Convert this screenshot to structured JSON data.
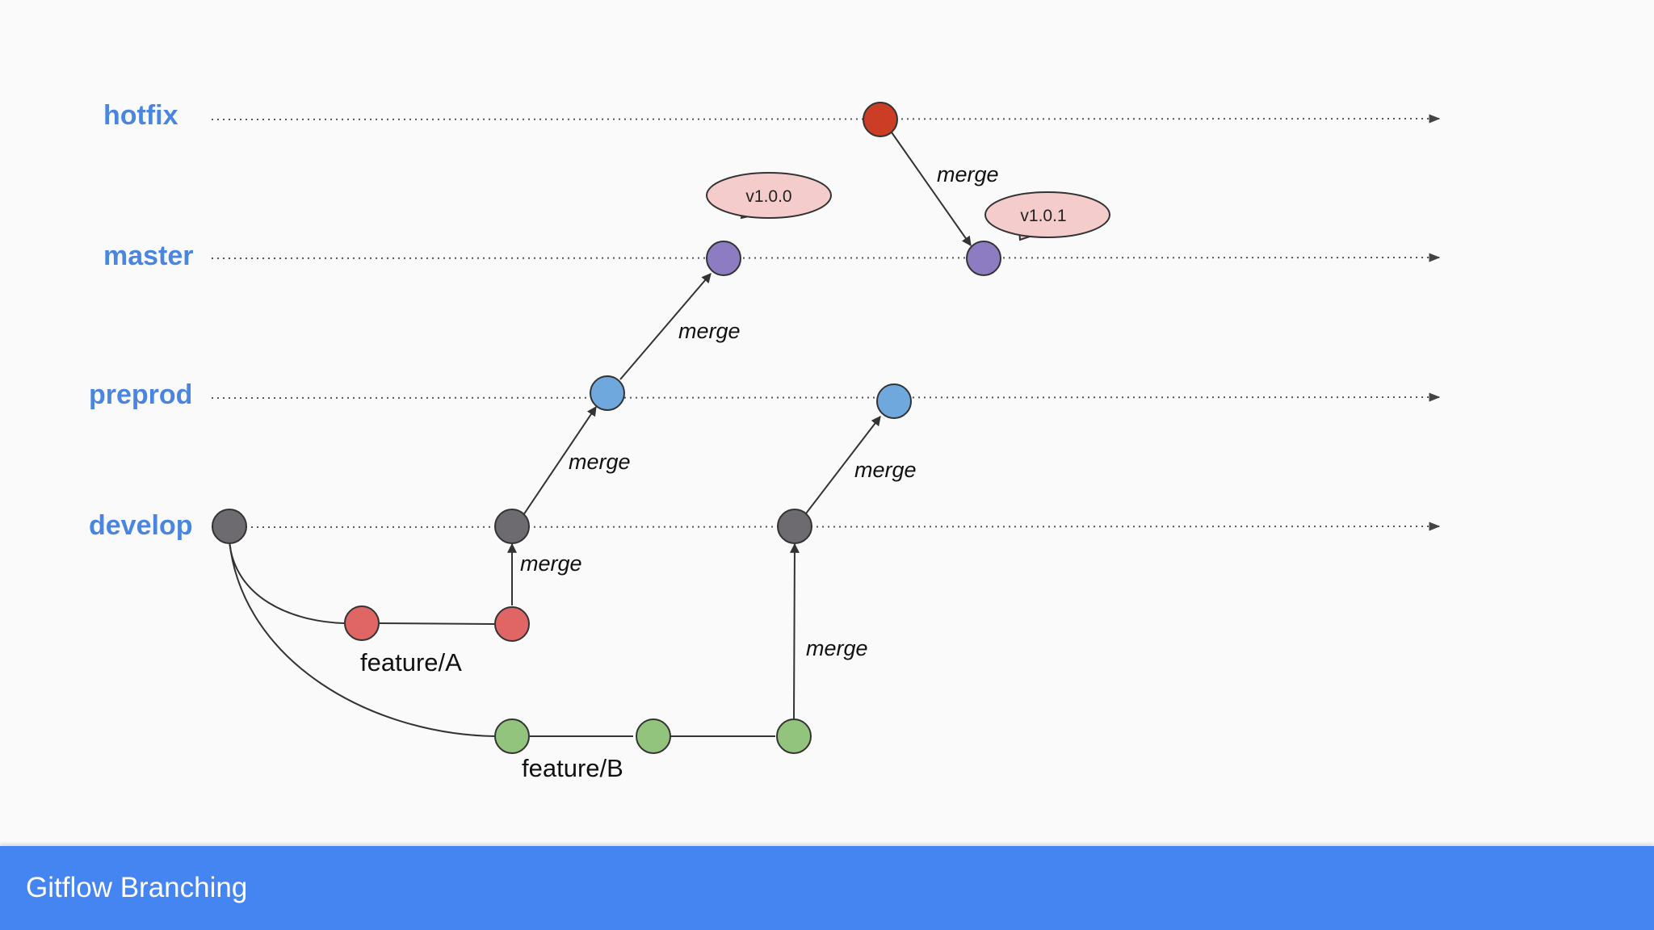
{
  "colors": {
    "label": "#4a86e0",
    "lane_line": "#555555",
    "footer_bg": "#4585f2",
    "tag_fill": "#f4cccc",
    "commit": {
      "gray": "#6d6b70",
      "red": "#e06666",
      "hotfix_red": "#cc3d26",
      "green": "#93c47d",
      "blue": "#6fa8dc",
      "purple": "#8e7cc3"
    }
  },
  "lanes": [
    {
      "id": "hotfix",
      "label": "hotfix"
    },
    {
      "id": "master",
      "label": "master"
    },
    {
      "id": "preprod",
      "label": "preprod"
    },
    {
      "id": "develop",
      "label": "develop"
    }
  ],
  "commits": [
    {
      "id": "dev1",
      "color": "gray"
    },
    {
      "id": "dev2",
      "color": "gray"
    },
    {
      "id": "dev3",
      "color": "gray"
    },
    {
      "id": "featA1",
      "color": "red"
    },
    {
      "id": "featA2",
      "color": "red"
    },
    {
      "id": "featB1",
      "color": "green"
    },
    {
      "id": "featB2",
      "color": "green"
    },
    {
      "id": "featB3",
      "color": "green"
    },
    {
      "id": "pre1",
      "color": "blue"
    },
    {
      "id": "pre2",
      "color": "blue"
    },
    {
      "id": "mas1",
      "color": "purple"
    },
    {
      "id": "mas2",
      "color": "purple"
    },
    {
      "id": "hot1",
      "color": "hotfix_red"
    }
  ],
  "merges": [
    {
      "id": "m1",
      "label": "merge"
    },
    {
      "id": "m2",
      "label": "merge"
    },
    {
      "id": "m3",
      "label": "merge"
    },
    {
      "id": "m4",
      "label": "merge"
    },
    {
      "id": "m5",
      "label": "merge"
    },
    {
      "id": "m6",
      "label": "merge"
    }
  ],
  "tags": [
    {
      "id": "t1",
      "label": "v1.0.0"
    },
    {
      "id": "t2",
      "label": "v1.0.1"
    }
  ],
  "branch_labels": [
    {
      "id": "fa",
      "label": "feature/A"
    },
    {
      "id": "fb",
      "label": "feature/B"
    }
  ],
  "footer": {
    "title": "Gitflow Branching"
  }
}
